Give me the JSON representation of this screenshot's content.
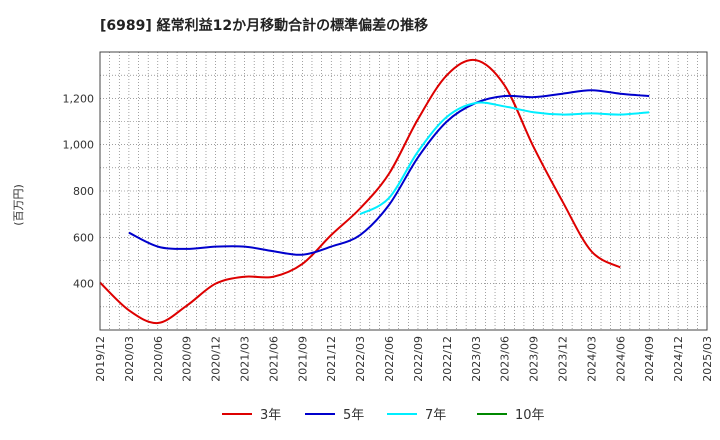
{
  "chart_data": {
    "type": "line",
    "title": "[6989]  経常利益12か月移動合計の標準偏差の推移",
    "ylabel": "(百万円)",
    "xlabel": "",
    "ylim": [
      200,
      1400
    ],
    "yticks": [
      400,
      600,
      800,
      1000,
      1200
    ],
    "x": [
      "2019/12",
      "2020/03",
      "2020/06",
      "2020/09",
      "2020/12",
      "2021/03",
      "2021/06",
      "2021/09",
      "2021/12",
      "2022/03",
      "2022/06",
      "2022/09",
      "2022/12",
      "2023/03",
      "2023/06",
      "2023/09",
      "2023/12",
      "2024/03",
      "2024/06",
      "2024/09",
      "2024/12",
      "2025/03"
    ],
    "grid": true,
    "legend_position": "bottom",
    "series": [
      {
        "name": "3年",
        "color": "#dd0000",
        "values": [
          405,
          285,
          230,
          305,
          400,
          430,
          430,
          485,
          610,
          725,
          875,
          1110,
          1300,
          1365,
          1255,
          990,
          755,
          540,
          470,
          null,
          null,
          null
        ]
      },
      {
        "name": "5年",
        "color": "#0000cc",
        "values": [
          null,
          620,
          560,
          550,
          560,
          560,
          540,
          525,
          560,
          610,
          740,
          945,
          1100,
          1180,
          1210,
          1205,
          1220,
          1235,
          1220,
          1210,
          null,
          null
        ]
      },
      {
        "name": "7年",
        "color": "#00eeff",
        "values": [
          null,
          null,
          null,
          null,
          null,
          null,
          null,
          null,
          null,
          700,
          770,
          970,
          1120,
          1180,
          1165,
          1140,
          1130,
          1135,
          1130,
          1140,
          null,
          null
        ]
      },
      {
        "name": "10年",
        "color": "#008800",
        "values": [
          null,
          null,
          null,
          null,
          null,
          null,
          null,
          null,
          null,
          null,
          null,
          null,
          null,
          null,
          null,
          null,
          null,
          null,
          null,
          null,
          null,
          null
        ]
      }
    ]
  }
}
